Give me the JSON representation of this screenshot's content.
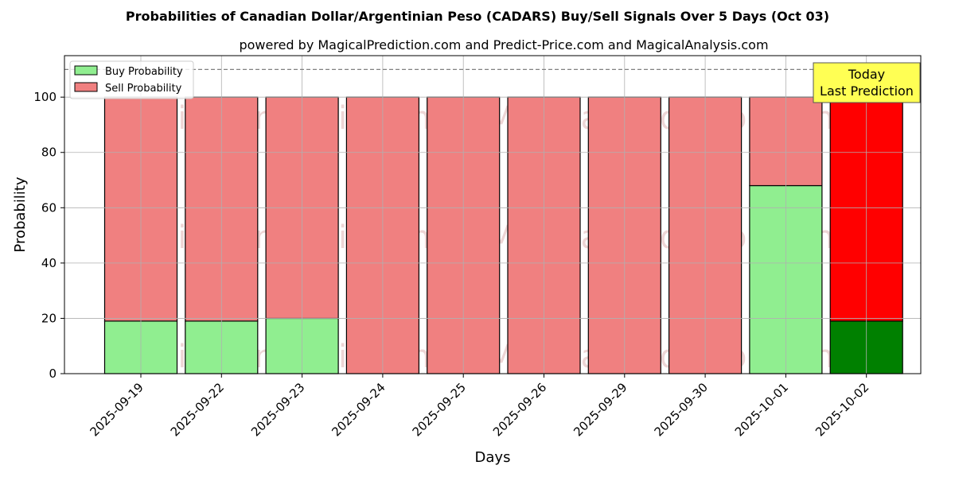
{
  "chart_data": {
    "type": "bar",
    "stacked": true,
    "title": "Probabilities of Canadian Dollar/Argentinian Peso (CADARS) Buy/Sell Signals Over 5 Days (Oct 03)",
    "subtitle": "powered by MagicalPrediction.com and Predict-Price.com and MagicalAnalysis.com",
    "xlabel": "Days",
    "ylabel": "Probability",
    "ylim": [
      0,
      115
    ],
    "yticks": [
      0,
      20,
      40,
      60,
      80,
      100
    ],
    "grid": true,
    "legend_position": "top-left",
    "categories": [
      "2025-09-19",
      "2025-09-22",
      "2025-09-23",
      "2025-09-24",
      "2025-09-25",
      "2025-09-26",
      "2025-09-29",
      "2025-09-30",
      "2025-10-01",
      "2025-10-02"
    ],
    "series": [
      {
        "name": "Buy Probability",
        "values": [
          19,
          19,
          20,
          0,
          0,
          0,
          0,
          0,
          68,
          19
        ],
        "color": "#90ee90",
        "highlight_color": "#008000"
      },
      {
        "name": "Sell Probability",
        "values": [
          81,
          81,
          80,
          100,
          100,
          100,
          100,
          100,
          32,
          81
        ],
        "color": "#f08080",
        "highlight_color": "#ff0000"
      }
    ],
    "highlight_index": 9,
    "reference_line": {
      "value": 110,
      "style": "dashed",
      "color": "#808080"
    },
    "annotation": {
      "lines": [
        "Today",
        "Last Prediction"
      ],
      "target_index": 9,
      "background": "#ffff54"
    },
    "watermarks": [
      "MagicalAnalysis.com",
      "MagicalPrediction.com"
    ]
  }
}
